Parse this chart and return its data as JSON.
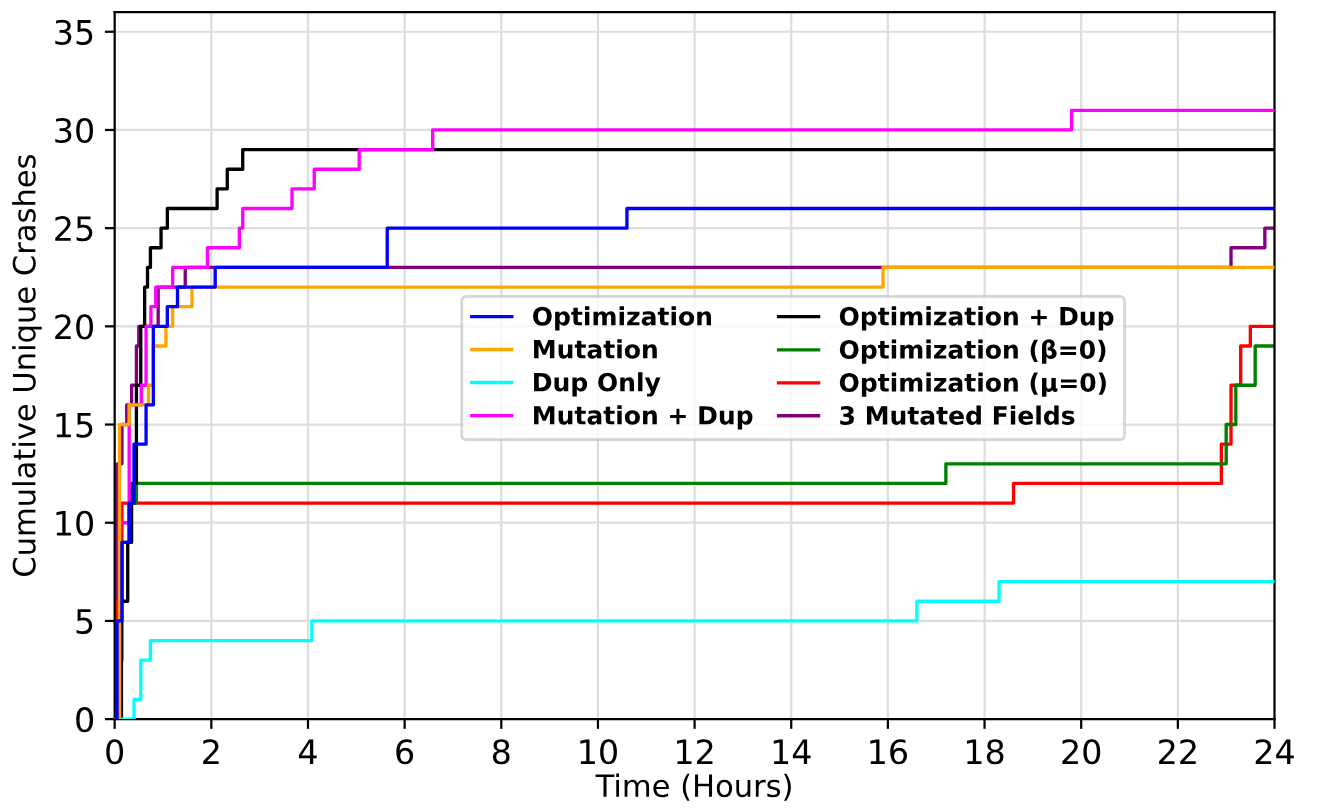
{
  "chart_data": {
    "type": "step",
    "xlabel": "Time (Hours)",
    "ylabel": "Cumulative Unique Crashes",
    "xlim": [
      0,
      24
    ],
    "ylim": [
      0,
      36
    ],
    "xticks": [
      0,
      2,
      4,
      6,
      8,
      10,
      12,
      14,
      16,
      18,
      20,
      22,
      24
    ],
    "yticks": [
      0,
      5,
      10,
      15,
      20,
      25,
      30,
      35
    ],
    "grid": true,
    "legend": "right",
    "line_style": "solid",
    "marker": "none",
    "series": [
      {
        "name": "Optimization",
        "color": "#0000ff",
        "x": [
          0,
          0.05,
          0.15,
          0.3,
          0.4,
          0.65,
          0.8,
          1.09,
          1.3,
          2.08,
          5.64,
          10.6,
          24
        ],
        "values": [
          0,
          5,
          9,
          11,
          14,
          16,
          20,
          21,
          22,
          23,
          25,
          26,
          26
        ]
      },
      {
        "name": "Mutation",
        "color": "#ffa500",
        "x": [
          0,
          0.1,
          0.3,
          0.7,
          0.8,
          1.06,
          1.2,
          1.6,
          15.9,
          24
        ],
        "values": [
          0,
          15,
          16,
          17,
          19,
          20,
          21,
          22,
          23,
          23
        ]
      },
      {
        "name": "Dup Only",
        "color": "#00ffff",
        "x": [
          0,
          0.4,
          0.54,
          0.74,
          4.08,
          16.6,
          18.3,
          24
        ],
        "values": [
          0,
          1,
          3,
          4,
          5,
          6,
          7,
          7
        ]
      },
      {
        "name": "Mutation + Dup",
        "color": "#ff00ff",
        "x": [
          0,
          0.1,
          0.3,
          0.55,
          0.65,
          0.75,
          0.85,
          1.2,
          1.92,
          2.58,
          2.65,
          3.67,
          4.13,
          5.06,
          6.58,
          19.8,
          24
        ],
        "values": [
          0,
          10,
          16,
          17,
          20,
          21,
          22,
          23,
          24,
          25,
          26,
          27,
          28,
          29,
          30,
          31,
          31
        ]
      },
      {
        "name": "Optimization + Dup",
        "color": "#000000",
        "x": [
          0,
          0.14,
          0.27,
          0.35,
          0.45,
          0.54,
          0.62,
          0.68,
          0.74,
          0.96,
          1.09,
          2.12,
          2.33,
          2.65,
          24
        ],
        "values": [
          0,
          6,
          9,
          12,
          17,
          20,
          22,
          23,
          24,
          25,
          26,
          27,
          28,
          29,
          29
        ]
      },
      {
        "name": "Optimization (β=0)",
        "color": "#008000",
        "x": [
          0,
          0.05,
          0.15,
          0.3,
          0.45,
          17.2,
          23.0,
          23.2,
          23.6,
          24
        ],
        "values": [
          0,
          3,
          9,
          11,
          12,
          13,
          15,
          17,
          19,
          19
        ]
      },
      {
        "name": "Optimization (μ=0)",
        "color": "#ff0000",
        "x": [
          0,
          0.05,
          0.15,
          18.6,
          22.9,
          23.1,
          23.3,
          23.5,
          24
        ],
        "values": [
          0,
          6,
          11,
          12,
          14,
          17,
          19,
          20,
          20
        ]
      },
      {
        "name": "3 Mutated Fields",
        "color": "#800080",
        "x": [
          0,
          0.05,
          0.15,
          0.25,
          0.35,
          0.45,
          0.5,
          0.9,
          1.46,
          23.1,
          23.8,
          24
        ],
        "values": [
          0,
          13,
          15,
          16,
          17,
          19,
          20,
          22,
          23,
          24,
          25,
          25
        ]
      }
    ]
  }
}
